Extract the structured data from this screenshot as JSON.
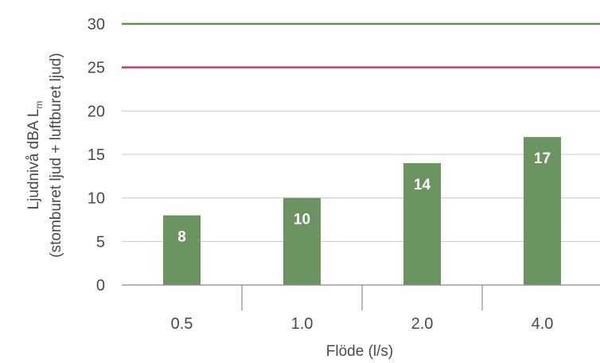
{
  "chart_data": {
    "type": "bar",
    "categories": [
      "0.5",
      "1.0",
      "2.0",
      "4.0"
    ],
    "values": [
      8,
      10,
      14,
      17
    ],
    "data_labels": [
      "8",
      "10",
      "14",
      "17"
    ],
    "title": "",
    "xlabel": "Flöde (l/s)",
    "ylabel": {
      "line1_main": "Ljudnivå dBA L",
      "line1_sub": "m",
      "line2": "(stomburet ljud + luftburet ljud)"
    },
    "ylim": [
      0,
      30
    ],
    "yticks": [
      "0",
      "5",
      "10",
      "15",
      "20",
      "25",
      "30"
    ],
    "reference_lines": [
      {
        "value": 30,
        "color": "#5f9448"
      },
      {
        "value": 25,
        "color": "#c8386c"
      }
    ],
    "bar_color": "#6b9460",
    "grid": true,
    "legend": "none"
  }
}
